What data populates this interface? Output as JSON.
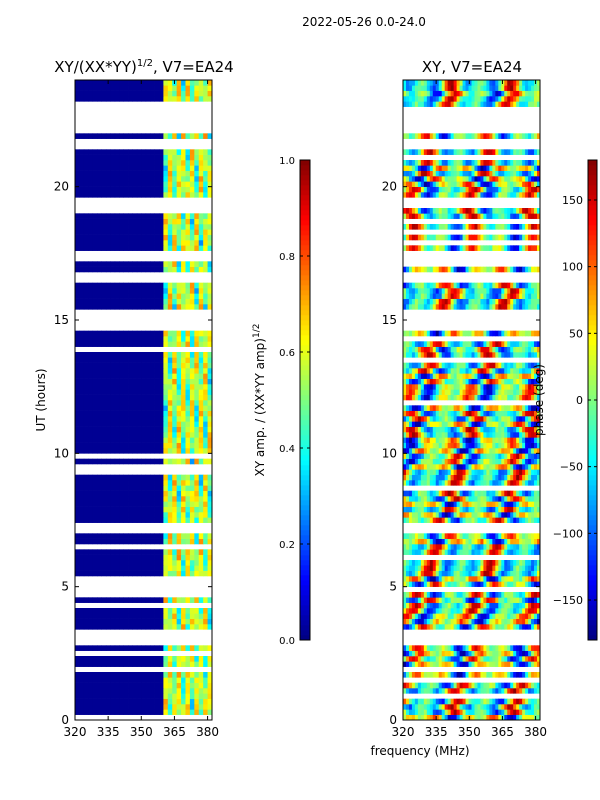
{
  "figure": {
    "suptitle": "2022-05-26 0.0-24.0",
    "shared_xlabel": "frequency (MHz)"
  },
  "colors": {
    "jet": [
      "#00007f",
      "#0000ff",
      "#007fff",
      "#00ffff",
      "#7fff7f",
      "#ffff00",
      "#ff7f00",
      "#ff0000",
      "#7f0000"
    ],
    "masked": "#ffffff"
  },
  "chart_data": [
    {
      "type": "heatmap",
      "title": "XY/(XX*YY)",
      "title_sup": "1/2",
      "title_suffix": ", V7=EA24",
      "xlabel": "",
      "ylabel": "UT (hours)",
      "xlim": [
        320,
        382
      ],
      "ylim": [
        0,
        24
      ],
      "xticks": [
        320,
        335,
        350,
        365,
        380
      ],
      "yticks": [
        0,
        5,
        10,
        15,
        20
      ],
      "active_band": [
        360,
        382
      ],
      "masked_bands": [
        [
          2.9,
          3.4
        ],
        [
          7.0,
          7.4
        ],
        [
          14.6,
          15.4
        ],
        [
          16.5,
          16.8
        ],
        [
          17.2,
          17.6
        ],
        [
          19.3,
          19.6
        ],
        [
          21.5,
          21.8
        ],
        [
          22.0,
          23.0
        ]
      ],
      "colorbar": {
        "label": "XY amp. / (XX*YY amp)",
        "label_sup": "1/2",
        "range": [
          0.0,
          1.0
        ],
        "ticks": [
          "0.0",
          "0.2",
          "0.4",
          "0.6",
          "0.8",
          "1.0"
        ],
        "tick_values": [
          0.0,
          0.2,
          0.4,
          0.6,
          0.8,
          1.0
        ]
      }
    },
    {
      "type": "heatmap",
      "title": "XY, V7=EA24",
      "xlabel": "",
      "ylabel": "",
      "xlim": [
        320,
        382
      ],
      "ylim": [
        0,
        24
      ],
      "xticks": [
        320,
        335,
        350,
        365,
        380
      ],
      "yticks": [
        0,
        5,
        10,
        15,
        20
      ],
      "masked_bands": [
        [
          2.9,
          3.4
        ],
        [
          7.0,
          7.4
        ],
        [
          14.6,
          15.4
        ],
        [
          16.5,
          16.8
        ],
        [
          17.2,
          17.6
        ],
        [
          19.3,
          19.6
        ],
        [
          21.5,
          21.8
        ],
        [
          22.0,
          23.0
        ]
      ],
      "colorbar": {
        "label": "phase (deg)",
        "range": [
          -180,
          180
        ],
        "ticks": [
          "−150",
          "−100",
          "−50",
          "0",
          "50",
          "100",
          "150"
        ],
        "tick_values": [
          -150,
          -100,
          -50,
          0,
          50,
          100,
          150
        ]
      }
    }
  ]
}
